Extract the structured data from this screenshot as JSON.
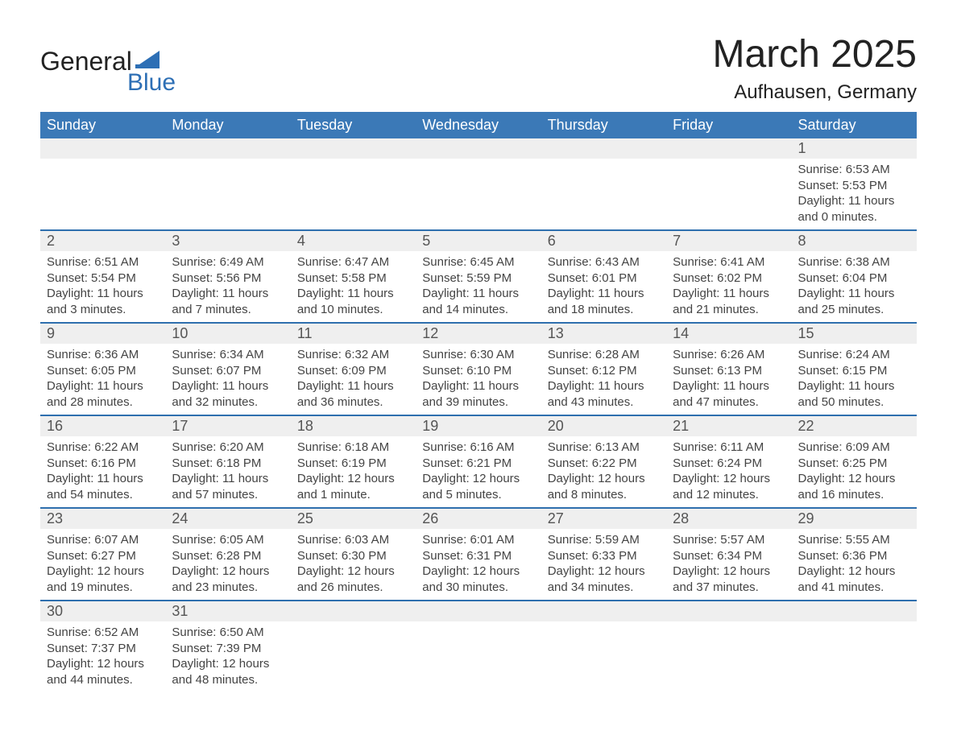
{
  "logo": {
    "text_top": "General",
    "text_bottom": "Blue",
    "accent_color": "#2d6fb5"
  },
  "title": "March 2025",
  "location": "Aufhausen, Germany",
  "colors": {
    "header_bg": "#3b79b7",
    "header_text": "#ffffff",
    "row_sep": "#2e6fae",
    "daynum_bg": "#efefef",
    "text": "#444444"
  },
  "day_headers": [
    "Sunday",
    "Monday",
    "Tuesday",
    "Wednesday",
    "Thursday",
    "Friday",
    "Saturday"
  ],
  "weeks": [
    [
      null,
      null,
      null,
      null,
      null,
      null,
      {
        "n": "1",
        "sr": "Sunrise: 6:53 AM",
        "ss": "Sunset: 5:53 PM",
        "dl": "Daylight: 11 hours and 0 minutes."
      }
    ],
    [
      {
        "n": "2",
        "sr": "Sunrise: 6:51 AM",
        "ss": "Sunset: 5:54 PM",
        "dl": "Daylight: 11 hours and 3 minutes."
      },
      {
        "n": "3",
        "sr": "Sunrise: 6:49 AM",
        "ss": "Sunset: 5:56 PM",
        "dl": "Daylight: 11 hours and 7 minutes."
      },
      {
        "n": "4",
        "sr": "Sunrise: 6:47 AM",
        "ss": "Sunset: 5:58 PM",
        "dl": "Daylight: 11 hours and 10 minutes."
      },
      {
        "n": "5",
        "sr": "Sunrise: 6:45 AM",
        "ss": "Sunset: 5:59 PM",
        "dl": "Daylight: 11 hours and 14 minutes."
      },
      {
        "n": "6",
        "sr": "Sunrise: 6:43 AM",
        "ss": "Sunset: 6:01 PM",
        "dl": "Daylight: 11 hours and 18 minutes."
      },
      {
        "n": "7",
        "sr": "Sunrise: 6:41 AM",
        "ss": "Sunset: 6:02 PM",
        "dl": "Daylight: 11 hours and 21 minutes."
      },
      {
        "n": "8",
        "sr": "Sunrise: 6:38 AM",
        "ss": "Sunset: 6:04 PM",
        "dl": "Daylight: 11 hours and 25 minutes."
      }
    ],
    [
      {
        "n": "9",
        "sr": "Sunrise: 6:36 AM",
        "ss": "Sunset: 6:05 PM",
        "dl": "Daylight: 11 hours and 28 minutes."
      },
      {
        "n": "10",
        "sr": "Sunrise: 6:34 AM",
        "ss": "Sunset: 6:07 PM",
        "dl": "Daylight: 11 hours and 32 minutes."
      },
      {
        "n": "11",
        "sr": "Sunrise: 6:32 AM",
        "ss": "Sunset: 6:09 PM",
        "dl": "Daylight: 11 hours and 36 minutes."
      },
      {
        "n": "12",
        "sr": "Sunrise: 6:30 AM",
        "ss": "Sunset: 6:10 PM",
        "dl": "Daylight: 11 hours and 39 minutes."
      },
      {
        "n": "13",
        "sr": "Sunrise: 6:28 AM",
        "ss": "Sunset: 6:12 PM",
        "dl": "Daylight: 11 hours and 43 minutes."
      },
      {
        "n": "14",
        "sr": "Sunrise: 6:26 AM",
        "ss": "Sunset: 6:13 PM",
        "dl": "Daylight: 11 hours and 47 minutes."
      },
      {
        "n": "15",
        "sr": "Sunrise: 6:24 AM",
        "ss": "Sunset: 6:15 PM",
        "dl": "Daylight: 11 hours and 50 minutes."
      }
    ],
    [
      {
        "n": "16",
        "sr": "Sunrise: 6:22 AM",
        "ss": "Sunset: 6:16 PM",
        "dl": "Daylight: 11 hours and 54 minutes."
      },
      {
        "n": "17",
        "sr": "Sunrise: 6:20 AM",
        "ss": "Sunset: 6:18 PM",
        "dl": "Daylight: 11 hours and 57 minutes."
      },
      {
        "n": "18",
        "sr": "Sunrise: 6:18 AM",
        "ss": "Sunset: 6:19 PM",
        "dl": "Daylight: 12 hours and 1 minute."
      },
      {
        "n": "19",
        "sr": "Sunrise: 6:16 AM",
        "ss": "Sunset: 6:21 PM",
        "dl": "Daylight: 12 hours and 5 minutes."
      },
      {
        "n": "20",
        "sr": "Sunrise: 6:13 AM",
        "ss": "Sunset: 6:22 PM",
        "dl": "Daylight: 12 hours and 8 minutes."
      },
      {
        "n": "21",
        "sr": "Sunrise: 6:11 AM",
        "ss": "Sunset: 6:24 PM",
        "dl": "Daylight: 12 hours and 12 minutes."
      },
      {
        "n": "22",
        "sr": "Sunrise: 6:09 AM",
        "ss": "Sunset: 6:25 PM",
        "dl": "Daylight: 12 hours and 16 minutes."
      }
    ],
    [
      {
        "n": "23",
        "sr": "Sunrise: 6:07 AM",
        "ss": "Sunset: 6:27 PM",
        "dl": "Daylight: 12 hours and 19 minutes."
      },
      {
        "n": "24",
        "sr": "Sunrise: 6:05 AM",
        "ss": "Sunset: 6:28 PM",
        "dl": "Daylight: 12 hours and 23 minutes."
      },
      {
        "n": "25",
        "sr": "Sunrise: 6:03 AM",
        "ss": "Sunset: 6:30 PM",
        "dl": "Daylight: 12 hours and 26 minutes."
      },
      {
        "n": "26",
        "sr": "Sunrise: 6:01 AM",
        "ss": "Sunset: 6:31 PM",
        "dl": "Daylight: 12 hours and 30 minutes."
      },
      {
        "n": "27",
        "sr": "Sunrise: 5:59 AM",
        "ss": "Sunset: 6:33 PM",
        "dl": "Daylight: 12 hours and 34 minutes."
      },
      {
        "n": "28",
        "sr": "Sunrise: 5:57 AM",
        "ss": "Sunset: 6:34 PM",
        "dl": "Daylight: 12 hours and 37 minutes."
      },
      {
        "n": "29",
        "sr": "Sunrise: 5:55 AM",
        "ss": "Sunset: 6:36 PM",
        "dl": "Daylight: 12 hours and 41 minutes."
      }
    ],
    [
      {
        "n": "30",
        "sr": "Sunrise: 6:52 AM",
        "ss": "Sunset: 7:37 PM",
        "dl": "Daylight: 12 hours and 44 minutes."
      },
      {
        "n": "31",
        "sr": "Sunrise: 6:50 AM",
        "ss": "Sunset: 7:39 PM",
        "dl": "Daylight: 12 hours and 48 minutes."
      },
      null,
      null,
      null,
      null,
      null
    ]
  ]
}
